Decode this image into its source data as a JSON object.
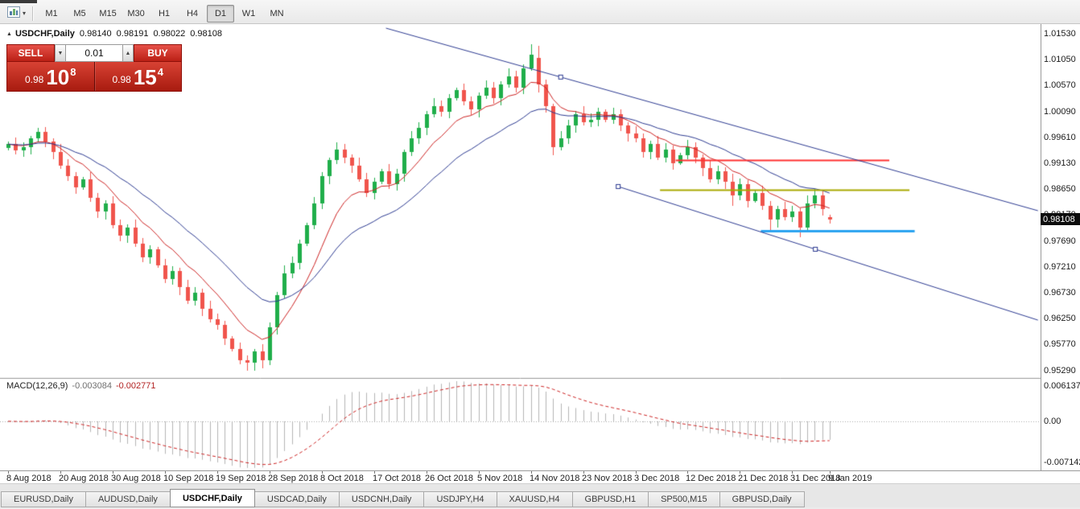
{
  "toolbar": {
    "timeframes": [
      "M1",
      "M5",
      "M15",
      "M30",
      "H1",
      "H4",
      "D1",
      "W1",
      "MN"
    ],
    "active_timeframe": "D1"
  },
  "chart": {
    "header": {
      "symbol": "USDCHF,Daily",
      "open": "0.98140",
      "high": "0.98191",
      "low": "0.98022",
      "close": "0.98108"
    },
    "trade_panel": {
      "sell_label": "SELL",
      "buy_label": "BUY",
      "volume": "0.01",
      "sell_price": {
        "prefix": "0.98",
        "big": "10",
        "pip": "8"
      },
      "buy_price": {
        "prefix": "0.98",
        "big": "15",
        "pip": "4"
      }
    },
    "current_price_label": "0.98108",
    "price_axis_labels": [
      "1.01530",
      "1.01050",
      "1.00570",
      "1.00090",
      "0.99610",
      "0.99130",
      "0.98650",
      "0.98170",
      "0.97690",
      "0.97210",
      "0.96730",
      "0.96250",
      "0.95770",
      "0.95290"
    ]
  },
  "macd_panel": {
    "name": "MACD(12,26,9)",
    "value_main": "-0.003084",
    "value_signal": "-0.002771",
    "axis_labels": [
      {
        "value": 0.006137,
        "label": "0.006137"
      },
      {
        "value": 0,
        "label": "0.00"
      },
      {
        "value": -0.007142,
        "label": "-0.007142"
      }
    ]
  },
  "tabs": {
    "items": [
      "EURUSD,Daily",
      "AUDUSD,Daily",
      "USDCHF,Daily",
      "USDCAD,Daily",
      "USDCNH,Daily",
      "USDJPY,H4",
      "XAUUSD,H4",
      "GBPUSD,H1",
      "SP500,M15",
      "GBPUSD,Daily"
    ],
    "active": "USDCHF,Daily"
  },
  "chart_data": {
    "type": "candlestick",
    "symbol": "USDCHF",
    "timeframe": "Daily",
    "price_axis_range": [
      0.9529,
      1.0153
    ],
    "macd_axis_range": [
      -0.007142,
      0.006137
    ],
    "first_open": 0.9943,
    "closes": [
      0.995,
      0.9938,
      0.9945,
      0.996,
      0.9972,
      0.9955,
      0.9935,
      0.991,
      0.989,
      0.987,
      0.9885,
      0.985,
      0.9825,
      0.984,
      0.98,
      0.978,
      0.9795,
      0.9765,
      0.974,
      0.9755,
      0.9725,
      0.97,
      0.9715,
      0.9685,
      0.966,
      0.9675,
      0.9645,
      0.9625,
      0.9615,
      0.959,
      0.957,
      0.955,
      0.9545,
      0.9565,
      0.955,
      0.961,
      0.967,
      0.971,
      0.973,
      0.9765,
      0.98,
      0.984,
      0.989,
      0.992,
      0.994,
      0.9925,
      0.991,
      0.9885,
      0.986,
      0.988,
      0.99,
      0.9875,
      0.9895,
      0.9935,
      0.996,
      0.998,
      1.0005,
      1.002,
      1.001,
      1.0035,
      1.005,
      1.003,
      1.0015,
      1.004,
      1.0055,
      1.0035,
      1.006,
      1.0075,
      1.0055,
      1.009,
      1.0115,
      1.006,
      1.002,
      0.9945,
      0.996,
      0.9985,
      1.0005,
      0.999,
      0.9995,
      1.001,
      0.9995,
      1.0005,
      0.9985,
      0.997,
      0.996,
      0.9935,
      0.995,
      0.9925,
      0.994,
      0.9915,
      0.993,
      0.9945,
      0.9925,
      0.9905,
      0.9885,
      0.99,
      0.988,
      0.9855,
      0.9875,
      0.9845,
      0.986,
      0.9835,
      0.981,
      0.983,
      0.9815,
      0.9825,
      0.9795,
      0.984,
      0.9855,
      0.983,
      0.98108
    ],
    "overrides": {
      "4": {
        "h": 0.998
      },
      "32": {
        "l": 0.953
      },
      "34": {
        "l": 0.9534
      },
      "70": {
        "h": 1.0135
      },
      "71": {
        "o": 1.011,
        "h": 1.0132,
        "l": 1.0045
      },
      "73": {
        "l": 0.993
      },
      "97": {
        "l": 0.9835
      },
      "102": {
        "l": 0.979
      },
      "106": {
        "l": 0.9778
      },
      "110": {
        "o": 0.9814,
        "h": 0.98191,
        "l": 0.98022,
        "c": 0.98108
      }
    },
    "ma_periods": {
      "fast": 9,
      "slow": 21
    },
    "macd_params": [
      12,
      26,
      9
    ],
    "colors": {
      "up": "#1fae4a",
      "down": "#f0544c",
      "ma_fast": "#cc2222",
      "ma_slow": "#2b3990",
      "trendline": "#2b3990",
      "macd_hist": "#b4b4b4",
      "macd_signal": "#cc2222"
    },
    "date_ticks": [
      {
        "i": 0,
        "label": "8 Aug 2018"
      },
      {
        "i": 7,
        "label": "20 Aug 2018"
      },
      {
        "i": 14,
        "label": "30 Aug 2018"
      },
      {
        "i": 21,
        "label": "10 Sep 2018"
      },
      {
        "i": 28,
        "label": "19 Sep 2018"
      },
      {
        "i": 35,
        "label": "28 Sep 2018"
      },
      {
        "i": 42,
        "label": "8 Oct 2018"
      },
      {
        "i": 49,
        "label": "17 Oct 2018"
      },
      {
        "i": 56,
        "label": "26 Oct 2018"
      },
      {
        "i": 63,
        "label": "5 Nov 2018"
      },
      {
        "i": 70,
        "label": "14 Nov 2018"
      },
      {
        "i": 77,
        "label": "23 Nov 2018"
      },
      {
        "i": 84,
        "label": "3 Dec 2018"
      },
      {
        "i": 91,
        "label": "12 Dec 2018"
      },
      {
        "i": 98,
        "label": "21 Dec 2018"
      },
      {
        "i": 105,
        "label": "31 Dec 2018"
      },
      {
        "i": 110,
        "label": "9 Jan 2019"
      }
    ],
    "hlines": [
      {
        "price": 0.992,
        "i1": 89.4,
        "i2": 118.0,
        "color": "#ff3030",
        "width": 2
      },
      {
        "price": 0.9865,
        "i1": 87.3,
        "i2": 120.7,
        "color": "#a8a800",
        "width": 2
      },
      {
        "price": 0.979,
        "i1": 100.8,
        "i2": 121.4,
        "color": "#2aa3f0",
        "width": 3
      }
    ],
    "trendlines": [
      {
        "i1": 50.6,
        "p1": 1.01649,
        "i2": 137.9,
        "p2": 0.98265,
        "handles": [
          74
        ]
      },
      {
        "i1": 81.7,
        "p1": 0.98713,
        "i2": 137.9,
        "p2": 0.96237,
        "handles": [
          81.7,
          108.1
        ]
      }
    ]
  }
}
